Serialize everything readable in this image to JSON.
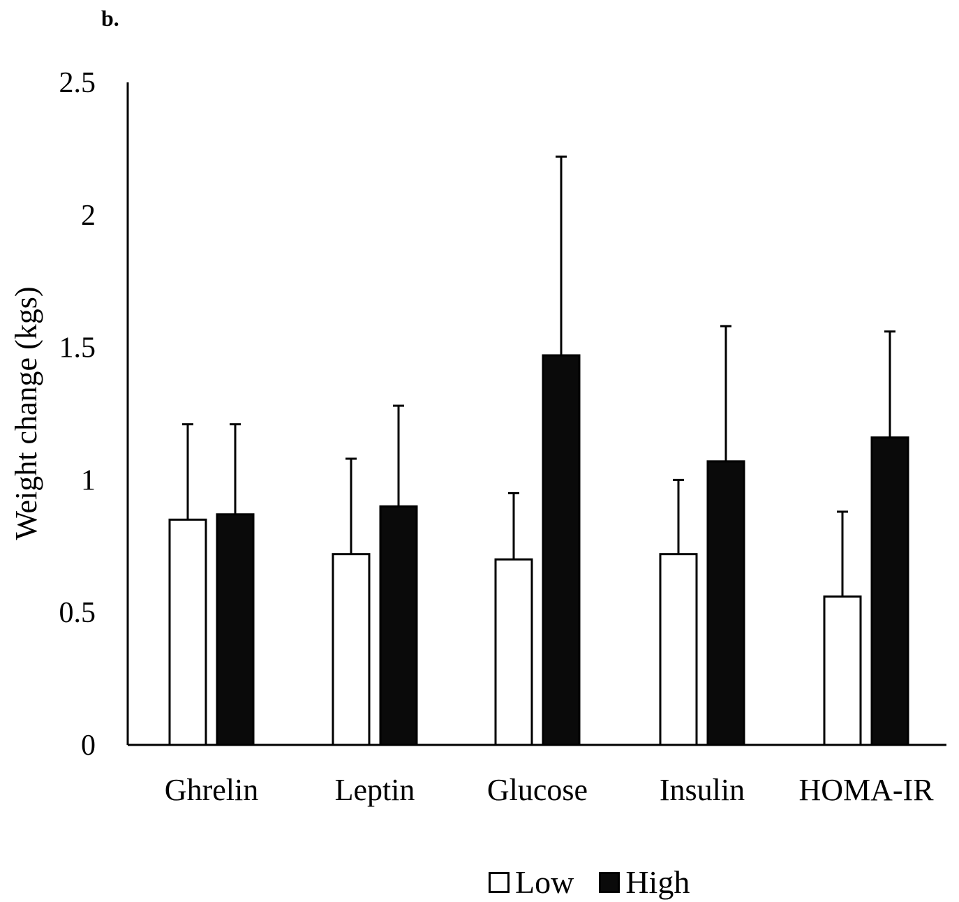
{
  "panel_label": "b.",
  "colors": {
    "low": "#ffffff",
    "high": "#0a0a0a",
    "stroke": "#000000"
  },
  "chart_data": {
    "type": "bar",
    "title": "",
    "xlabel": "",
    "ylabel": "Weight change (kgs)",
    "ylim": [
      0,
      2.5
    ],
    "yticks": [
      "0",
      "0.5",
      "1",
      "1.5",
      "2",
      "2.5"
    ],
    "categories": [
      "Ghrelin",
      "Leptin",
      "Glucose",
      "Insulin",
      "HOMA-IR"
    ],
    "series": [
      {
        "name": "Low",
        "values": [
          0.85,
          0.72,
          0.7,
          0.72,
          0.56
        ],
        "error": [
          0.36,
          0.36,
          0.25,
          0.28,
          0.32
        ]
      },
      {
        "name": "High",
        "values": [
          0.87,
          0.9,
          1.47,
          1.07,
          1.16
        ],
        "error": [
          0.34,
          0.38,
          0.75,
          0.51,
          0.4
        ]
      }
    ],
    "legend_position": "bottom",
    "grid": false
  }
}
